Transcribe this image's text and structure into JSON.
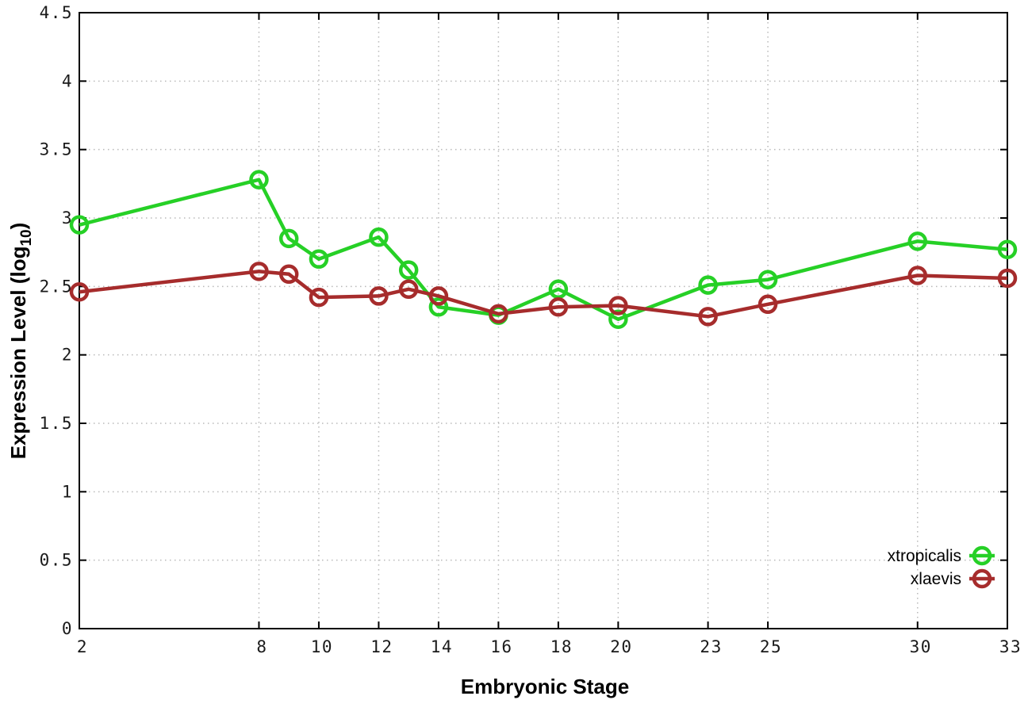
{
  "page": {
    "background": "#ffffff"
  },
  "colors": {
    "border": "#000000",
    "grid": "#b9b9b9",
    "tick_mark": "#000000",
    "tick_label": "#1a1a1a",
    "axis_title": "#000000",
    "legend_text": "#000000",
    "xtropicalis": "#26d026",
    "xlaevis": "#a62c2c"
  },
  "chart_data": {
    "type": "line",
    "title": "",
    "xlabel": "Embryonic Stage",
    "ylabel": "Expression Level (log10)",
    "ylabel_parts": {
      "prefix": "Expression Level (log",
      "subscript": "10",
      "suffix": ")"
    },
    "xlim": [
      2,
      33
    ],
    "ylim": [
      0,
      4.5
    ],
    "x_ticks": [
      2,
      8,
      10,
      12,
      14,
      16,
      18,
      20,
      23,
      25,
      30,
      33
    ],
    "x_tick_labels": [
      "2",
      "8",
      "10",
      "12",
      "14",
      "16",
      "18",
      "20",
      "23",
      "25",
      "30",
      "33"
    ],
    "y_ticks": [
      0,
      0.5,
      1,
      1.5,
      2,
      2.5,
      3,
      3.5,
      4,
      4.5
    ],
    "y_tick_labels": [
      "0",
      "0.5",
      "1",
      "1.5",
      "2",
      "2.5",
      "3",
      "3.5",
      "4",
      "4.5"
    ],
    "grid": true,
    "grid_style": "dotted",
    "legend_position": "bottom-right",
    "marker": "open-circle",
    "x": [
      2,
      8,
      9,
      10,
      12,
      13,
      14,
      16,
      18,
      20,
      23,
      25,
      30,
      33
    ],
    "series": [
      {
        "name": "xtropicalis",
        "color": "#26d026",
        "values": [
          2.95,
          3.28,
          2.85,
          2.7,
          2.86,
          2.62,
          2.35,
          2.29,
          2.48,
          2.26,
          2.51,
          2.55,
          2.83,
          2.77
        ]
      },
      {
        "name": "xlaevis",
        "color": "#a62c2c",
        "values": [
          2.46,
          2.61,
          2.59,
          2.42,
          2.43,
          2.48,
          2.43,
          2.3,
          2.35,
          2.36,
          2.28,
          2.37,
          2.58,
          2.56
        ]
      }
    ]
  }
}
